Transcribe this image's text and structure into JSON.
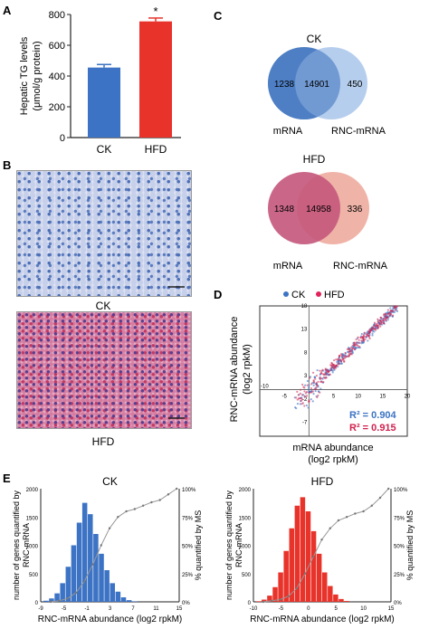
{
  "panels": {
    "A": "A",
    "B": "B",
    "C": "C",
    "D": "D",
    "E": "E"
  },
  "micrographs": {
    "ck_label": "CK",
    "hfd_label": "HFD"
  },
  "venn_ck": {
    "title": "CK",
    "left_only": "1238",
    "overlap": "14901",
    "right_only": "450",
    "left_label": "mRNA",
    "right_label": "RNC-mRNA",
    "colors": {
      "left": "#4f7fc4",
      "right": "#a9c6ea"
    }
  },
  "venn_hfd": {
    "title": "HFD",
    "left_only": "1348",
    "overlap": "14958",
    "right_only": "336",
    "left_label": "mRNA",
    "right_label": "RNC-mRNA",
    "colors": {
      "left": "#c4567b",
      "right": "#f0b3a8"
    }
  },
  "chart_data": [
    {
      "id": "A",
      "type": "bar",
      "categories": [
        "CK",
        "HFD"
      ],
      "values": [
        455,
        755
      ],
      "errors": [
        20,
        22
      ],
      "significance": [
        "",
        "*"
      ],
      "colors": [
        "#3d73c4",
        "#e8332b"
      ],
      "ylabel_line1": "Hepatic TG levels",
      "ylabel_line2": "(μmol/g protein)",
      "ylim": [
        0,
        800
      ],
      "yticks": [
        "0",
        "200",
        "400",
        "600",
        "800"
      ],
      "grid": false
    },
    {
      "id": "D",
      "type": "scatter",
      "title": "",
      "xlabel_line1": "mRNA abundance",
      "xlabel_line2": "(log2 rpkM)",
      "ylabel_line1": "RNC-mRNA abundance",
      "ylabel_line2": "(log2 rpkM)",
      "xlim": [
        -10,
        20
      ],
      "ylim": [
        -10,
        18
      ],
      "xticks": [
        "-10",
        "-5",
        "0",
        "5",
        "10",
        "15",
        "20"
      ],
      "yticks": [
        "18",
        "13",
        "8",
        "3",
        "-2",
        "-7"
      ],
      "legend": {
        "placement": "top",
        "entries": [
          "CK",
          "HFD"
        ],
        "colors": [
          "#3d73c4",
          "#e0245a"
        ]
      },
      "series": [
        {
          "name": "CK",
          "fit": "y = x",
          "r2": "R² = 0.904",
          "color": "#3d73c4"
        },
        {
          "name": "HFD",
          "fit": "y = x",
          "r2": "R² = 0.915",
          "color": "#d0224e"
        }
      ]
    },
    {
      "id": "E-CK",
      "type": "bar",
      "title": "CK",
      "xlabel": "RNC-mRNA abundance (log2 rpkM)",
      "ylabel_line1": "number of genes quantified by",
      "ylabel_line2": "RNC-mRNA",
      "y2label": "% quantified by MS",
      "bin_start": -9,
      "bin_width": 1,
      "values": [
        20,
        60,
        150,
        330,
        620,
        1000,
        1400,
        1750,
        1550,
        1200,
        850,
        560,
        330,
        180,
        80,
        30,
        10
      ],
      "cumulative_pct": [
        0,
        1,
        3,
        8,
        18,
        33,
        50,
        65,
        75,
        80,
        82,
        85,
        88,
        90,
        95,
        100
      ],
      "color": "#3d73c4",
      "ylim": [
        0,
        2000
      ],
      "yticks": [
        "0",
        "500",
        "1000",
        "1500",
        "2000"
      ],
      "y2ticks": [
        "0%",
        "25%",
        "50%",
        "75%",
        "100%"
      ],
      "xticks": [
        "-9",
        "-5",
        "-1",
        "3",
        "7",
        "11",
        "15"
      ]
    },
    {
      "id": "E-HFD",
      "type": "bar",
      "title": "HFD",
      "xlabel": "RNC-mRNA abundance (log2 rpkM)",
      "ylabel_line1": "number of genes quantified by",
      "ylabel_line2": "RNC-mRNA",
      "y2label": "% quantified by MS",
      "bin_start": -10,
      "bin_width": 1,
      "values": [
        10,
        40,
        110,
        260,
        520,
        900,
        1300,
        1700,
        1850,
        1600,
        1250,
        850,
        520,
        280,
        130,
        50,
        15
      ],
      "cumulative_pct": [
        0,
        1,
        2,
        5,
        12,
        25,
        40,
        55,
        65,
        72,
        75,
        78,
        80,
        85,
        92,
        100
      ],
      "color": "#e8332b",
      "ylim": [
        0,
        2000
      ],
      "yticks": [
        "0",
        "500",
        "1000",
        "1500",
        "2000"
      ],
      "y2ticks": [
        "0%",
        "25%",
        "50%",
        "75%",
        "100%"
      ],
      "xticks": [
        "-10",
        "-5",
        "0",
        "5",
        "10",
        "15"
      ]
    }
  ]
}
